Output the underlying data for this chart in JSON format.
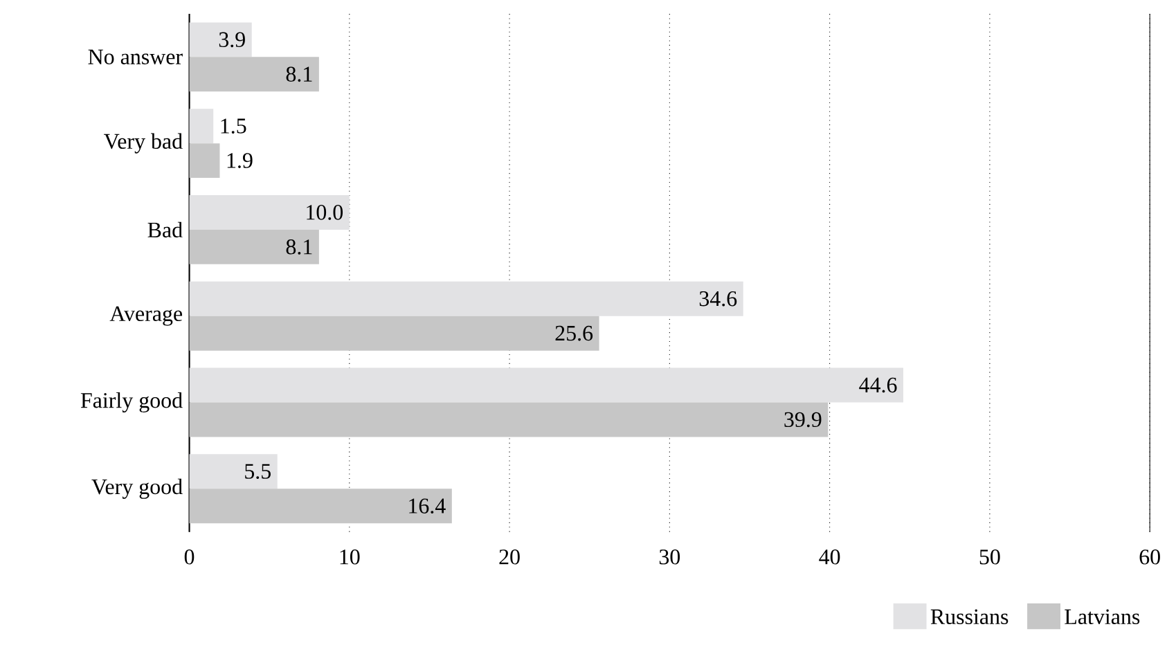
{
  "chart_data": {
    "type": "bar",
    "orientation": "horizontal",
    "categories": [
      "No answer",
      "Very bad",
      "Bad",
      "Average",
      "Fairly good",
      "Very good"
    ],
    "series": [
      {
        "name": "Russians",
        "color": "#e2e2e4",
        "values": [
          3.9,
          1.5,
          10.0,
          34.6,
          44.6,
          5.5
        ],
        "value_labels": [
          "3.9",
          "1.5",
          "10.0",
          "34.6",
          "44.6",
          "5.5"
        ]
      },
      {
        "name": "Latvians",
        "color": "#c6c6c6",
        "values": [
          8.1,
          1.9,
          8.1,
          25.6,
          39.9,
          16.4
        ],
        "value_labels": [
          "8.1",
          "1.9",
          "8.1",
          "25.6",
          "39.9",
          "16.4"
        ]
      }
    ],
    "xlim": [
      0,
      60
    ],
    "xticks": [
      0,
      10,
      20,
      30,
      40,
      50,
      60
    ],
    "grid": "x",
    "legend": "bottom right"
  }
}
